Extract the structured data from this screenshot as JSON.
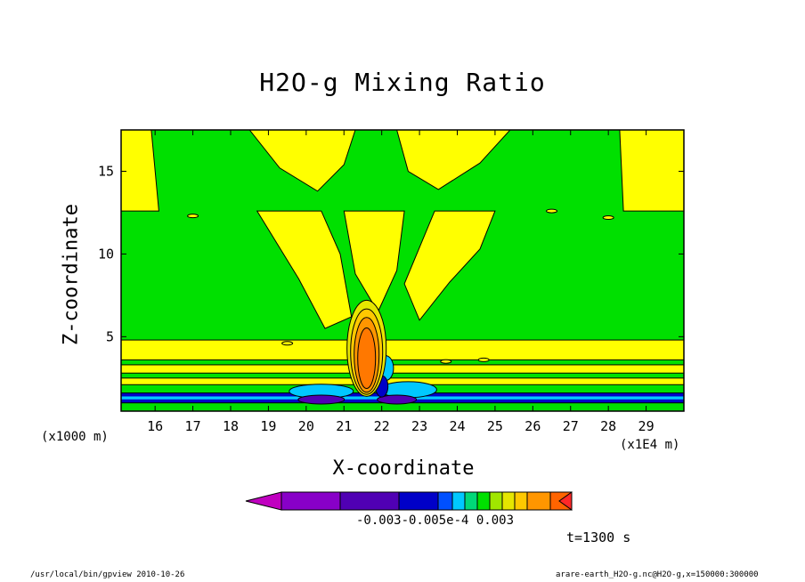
{
  "chart_data": {
    "type": "heatmap",
    "title": "H2O-g Mixing Ratio",
    "xlabel": "X-coordinate",
    "ylabel": "Z-coordinate",
    "x_unit": "(x1E4 m)",
    "y_unit": "(x1000 m)",
    "xlim": [
      15.1,
      30.0
    ],
    "ylim": [
      0.5,
      17.5
    ],
    "x_ticks": [
      "16",
      "17",
      "18",
      "19",
      "20",
      "21",
      "22",
      "23",
      "24",
      "25",
      "26",
      "27",
      "28",
      "29"
    ],
    "y_ticks": [
      "5",
      "10",
      "15"
    ],
    "time_label": "t=1300 s",
    "colorbar_labels_text": "-0.003-0.005e-4  0.003",
    "colorbar_colors": [
      "#c000c0",
      "#8800c8",
      "#5000b4",
      "#0000c8",
      "#0050ff",
      "#00c8ff",
      "#00d878",
      "#00e000",
      "#a0e600",
      "#e6e600",
      "#ffc800",
      "#ff9600",
      "#ff6400",
      "#ff2828"
    ],
    "background_green": "#00e000",
    "yellow_region": "#ffff00",
    "features": [
      {
        "kind": "yellow-band",
        "y": [
          3.6,
          4.8
        ],
        "x": [
          15.1,
          30.0
        ]
      },
      {
        "kind": "yellow-band",
        "y": [
          2.8,
          3.3
        ],
        "x": [
          15.1,
          30.0
        ]
      },
      {
        "kind": "yellow-band",
        "y": [
          2.1,
          2.5
        ],
        "x": [
          15.1,
          30.0
        ]
      },
      {
        "kind": "blue-band",
        "y": [
          1.0,
          1.6
        ],
        "x": [
          15.1,
          30.0
        ]
      },
      {
        "kind": "positive-max",
        "x": 21.6,
        "y": 4.0,
        "value": 0.003
      },
      {
        "kind": "negative-min",
        "x": 20.4,
        "y": 1.2,
        "value": -0.003
      }
    ]
  },
  "footer": {
    "path": "/usr/local/bin/gpview  2010-10-26",
    "source": "arare-earth_H2O-g.nc@H2O-g,x=150000:300000"
  }
}
